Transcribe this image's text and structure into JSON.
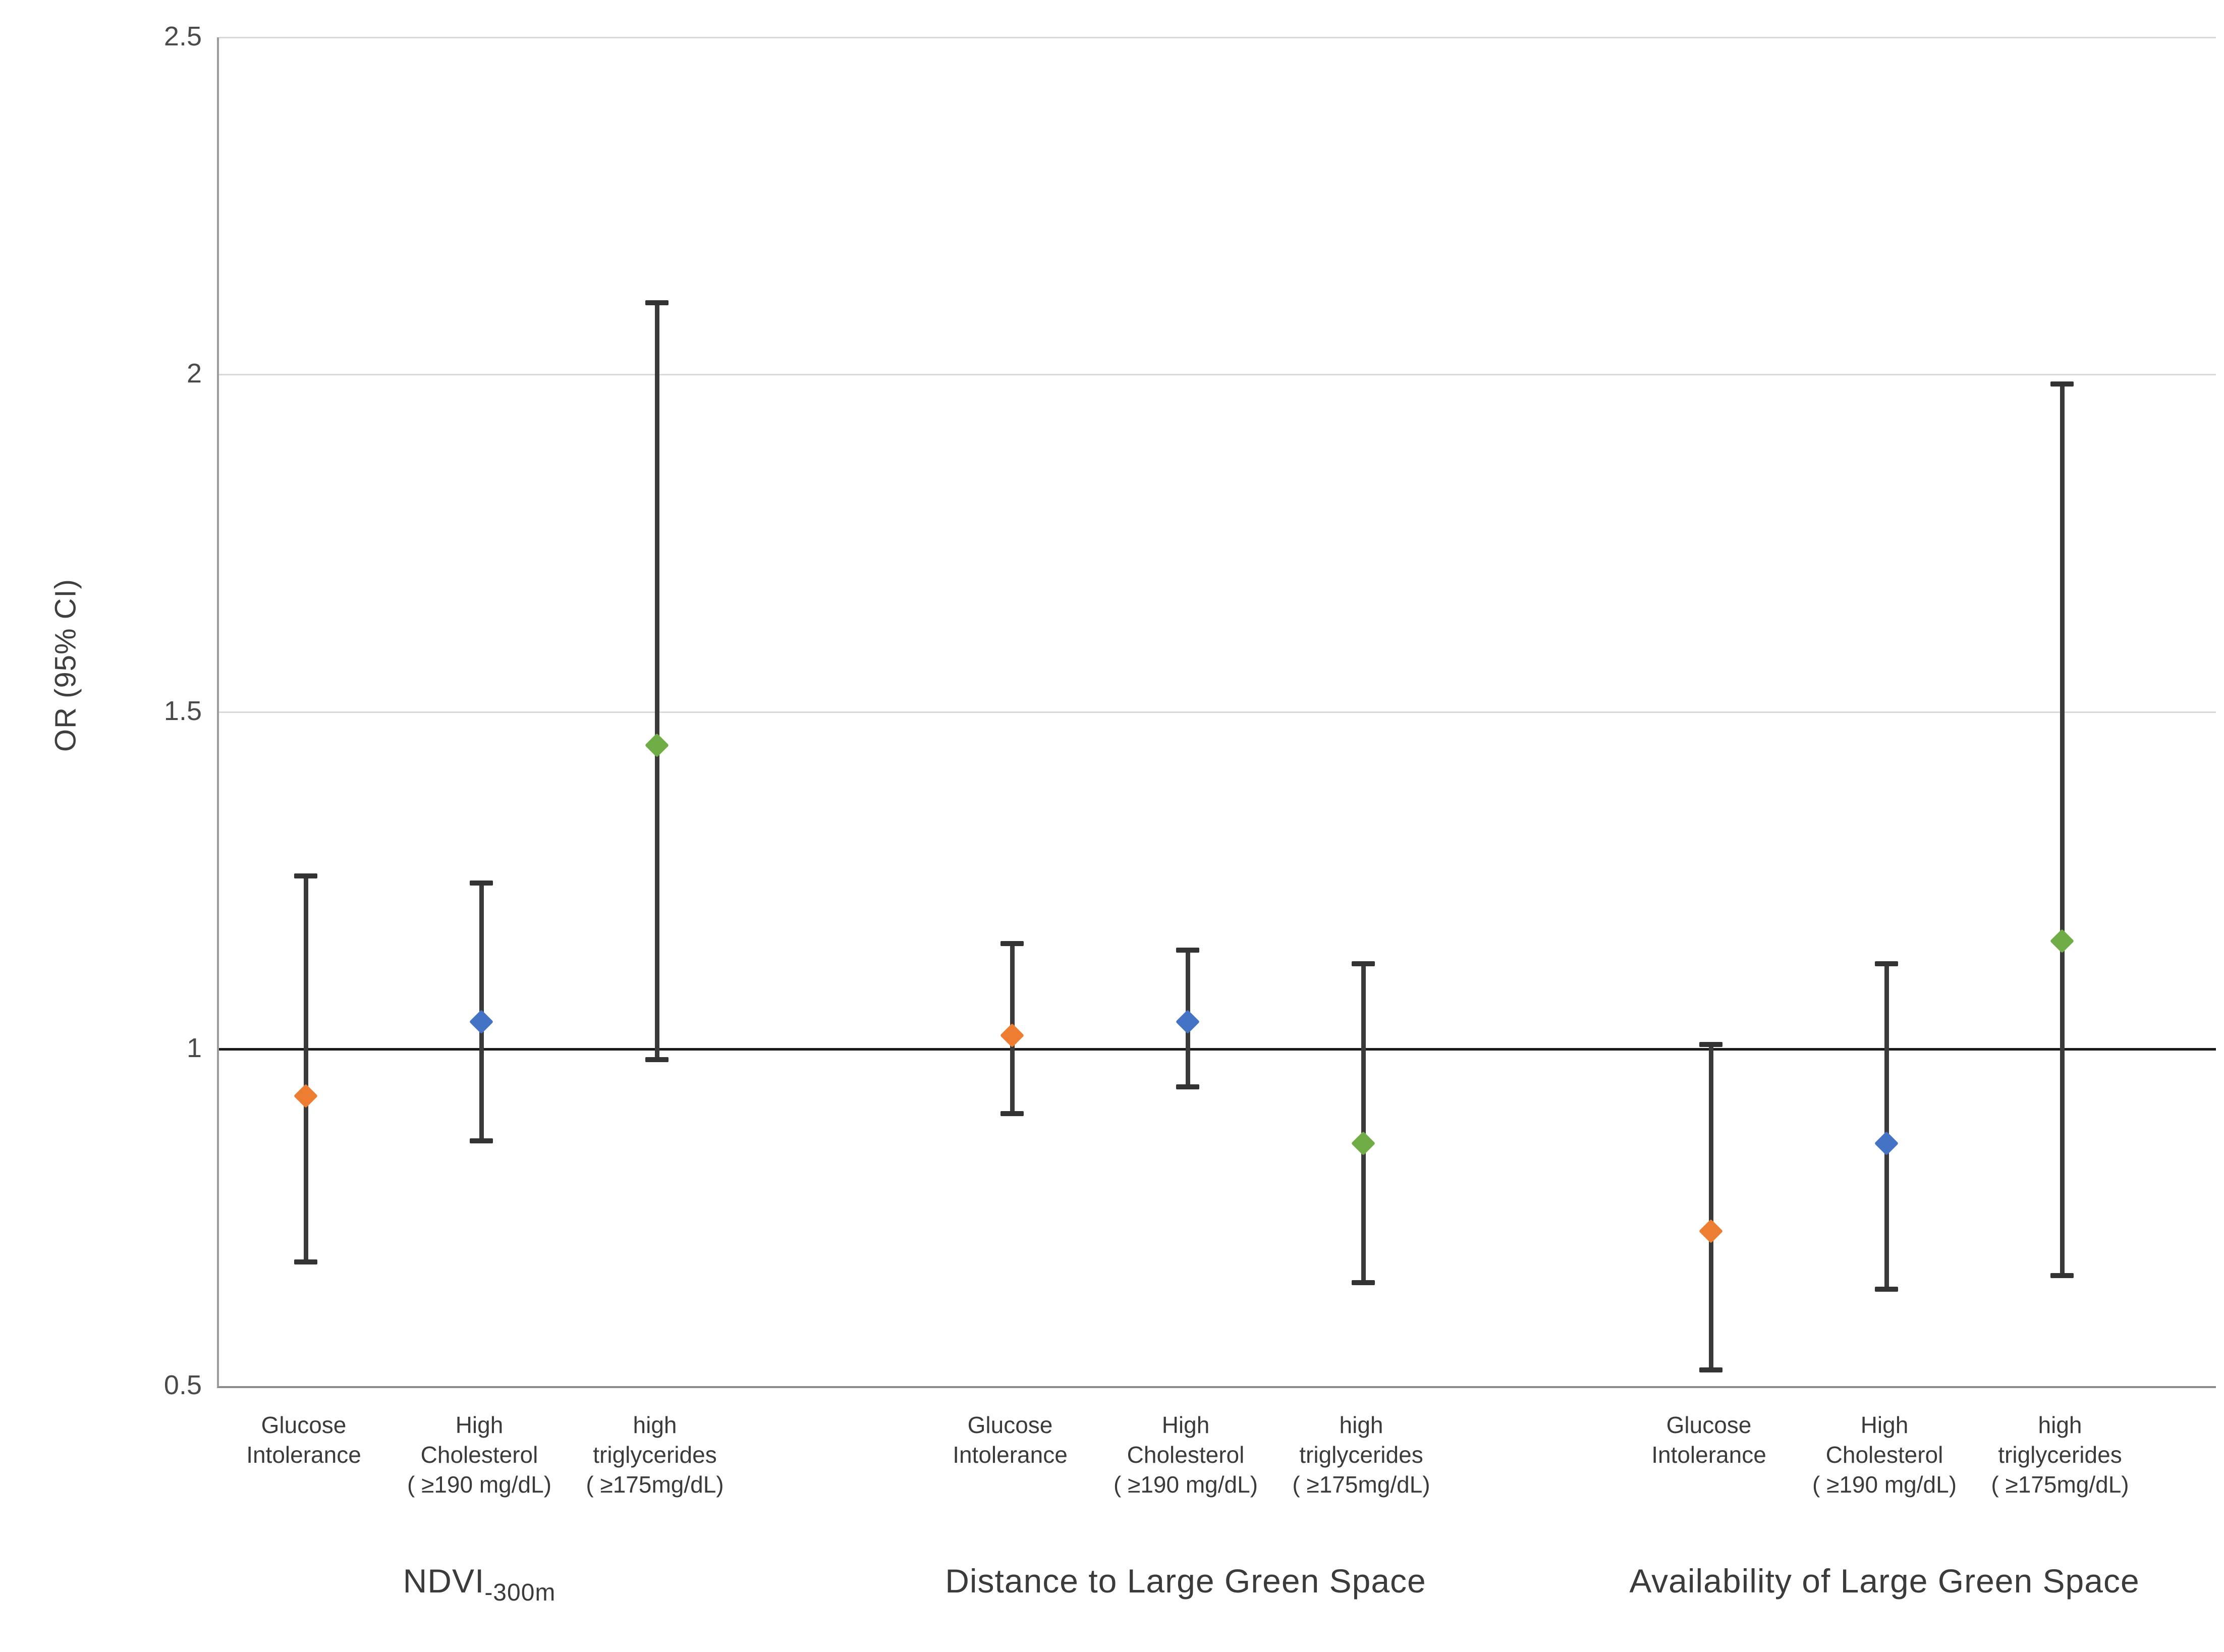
{
  "figure": {
    "background_color": "#ffffff",
    "text_color": "#3b3b3b",
    "whisker_color": "#3a3a3a",
    "gridline_color": "#d9d9d9",
    "reference_line_color": "#1a1a1a"
  },
  "y_axis": {
    "title": "OR (95% CI)",
    "tick_labels": [
      "2.5",
      "2",
      "1.5",
      "1",
      "0.5"
    ],
    "tick_values": [
      2.5,
      2,
      1.5,
      1,
      0.5
    ]
  },
  "chart_data": {
    "type": "scatter",
    "subtype": "forest-plot-error-bars",
    "title": "",
    "xlabel": "",
    "ylabel": "OR (95% CI)",
    "ylim": [
      0.5,
      2.5
    ],
    "yticks": [
      0.5,
      1,
      1.5,
      2,
      2.5
    ],
    "gridline_values": [
      1.5,
      2,
      2.5
    ],
    "reference_line": 1.0,
    "grid": "horizontal-only",
    "legend_position": "none",
    "marker_shape": "diamond",
    "series_colors": {
      "glucose_intolerance": "#ED7D31",
      "high_cholesterol": "#4472C4",
      "high_triglycerides": "#70AD47"
    },
    "groups": [
      {
        "label_main": "NDVI",
        "label_sub": "-300m",
        "points": [
          {
            "outcome": "Glucose Intolerance",
            "outcome_lines": [
              "Glucose",
              "Intolerance"
            ],
            "series": "glucose_intolerance",
            "color": "#ED7D31",
            "or": 0.93,
            "ci_low": 0.68,
            "ci_high": 1.26
          },
          {
            "outcome": "High Cholesterol ( ≥190 mg/dL)",
            "outcome_lines": [
              "High",
              "Cholesterol",
              "( ≥190 mg/dL)"
            ],
            "series": "high_cholesterol",
            "color": "#4472C4",
            "or": 1.04,
            "ci_low": 0.86,
            "ci_high": 1.25
          },
          {
            "outcome": "high triglycerides ( ≥175mg/dL)",
            "outcome_lines": [
              "high",
              "triglycerides",
              "( ≥175mg/dL)"
            ],
            "series": "high_triglycerides",
            "color": "#70AD47",
            "or": 1.45,
            "ci_low": 0.98,
            "ci_high": 2.11
          }
        ]
      },
      {
        "label_main": "Distance to Large Green Space",
        "label_sub": "",
        "points": [
          {
            "outcome": "Glucose Intolerance",
            "outcome_lines": [
              "Glucose",
              "Intolerance"
            ],
            "series": "glucose_intolerance",
            "color": "#ED7D31",
            "or": 1.02,
            "ci_low": 0.9,
            "ci_high": 1.16
          },
          {
            "outcome": "High Cholesterol ( ≥190 mg/dL)",
            "outcome_lines": [
              "High",
              "Cholesterol",
              "( ≥190 mg/dL)"
            ],
            "series": "high_cholesterol",
            "color": "#4472C4",
            "or": 1.04,
            "ci_low": 0.94,
            "ci_high": 1.15
          },
          {
            "outcome": "high triglycerides ( ≥175mg/dL)",
            "outcome_lines": [
              "high",
              "triglycerides",
              "( ≥175mg/dL)"
            ],
            "series": "high_triglycerides",
            "color": "#70AD47",
            "or": 0.86,
            "ci_low": 0.65,
            "ci_high": 1.13
          }
        ]
      },
      {
        "label_main": "Availability of Large Green Space",
        "label_sub": "",
        "points": [
          {
            "outcome": "Glucose Intolerance",
            "outcome_lines": [
              "Glucose",
              "Intolerance"
            ],
            "series": "glucose_intolerance",
            "color": "#ED7D31",
            "or": 0.73,
            "ci_low": 0.52,
            "ci_high": 1.01
          },
          {
            "outcome": "High Cholesterol ( ≥190 mg/dL)",
            "outcome_lines": [
              "High",
              "Cholesterol",
              "( ≥190 mg/dL)"
            ],
            "series": "high_cholesterol",
            "color": "#4472C4",
            "or": 0.86,
            "ci_low": 0.64,
            "ci_high": 1.13
          },
          {
            "outcome": "high triglycerides ( ≥175mg/dL)",
            "outcome_lines": [
              "high",
              "triglycerides",
              "( ≥175mg/dL)"
            ],
            "series": "high_triglycerides",
            "color": "#70AD47",
            "or": 1.16,
            "ci_low": 0.66,
            "ci_high": 1.99
          }
        ]
      }
    ]
  }
}
